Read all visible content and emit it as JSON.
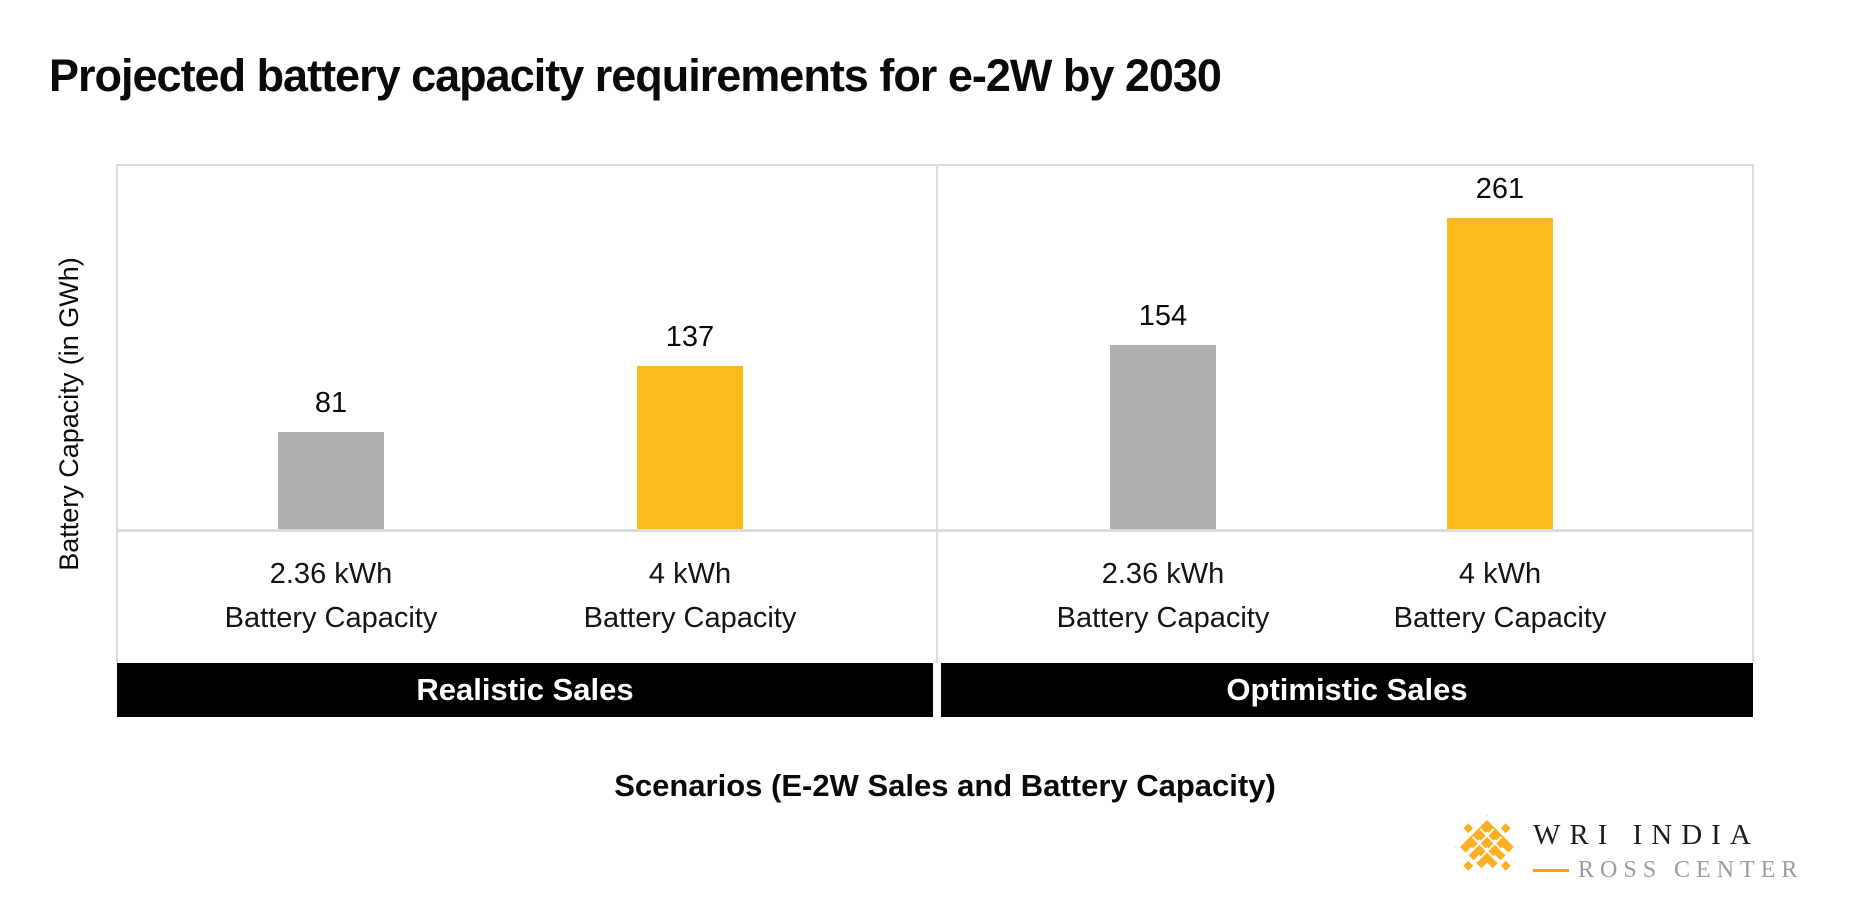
{
  "title": "Projected battery capacity requirements for e-2W by 2030",
  "chart_data": {
    "type": "bar",
    "title": "Projected battery capacity requirements for e-2W by 2030",
    "ylabel": "Battery Capacity (in GWh)",
    "xlabel": "Scenarios (E-2W Sales and Battery Capacity)",
    "ylim": [
      0,
      310
    ],
    "grid": false,
    "value_labels_shown": true,
    "groups": [
      {
        "label": "Realistic Sales",
        "bars": [
          {
            "category_line1": "2.36 kWh",
            "category_line2": "Battery Capacity",
            "value": 81,
            "color": "gray"
          },
          {
            "category_line1": "4 kWh",
            "category_line2": "Battery Capacity",
            "value": 137,
            "color": "yellow"
          }
        ]
      },
      {
        "label": "Optimistic Sales",
        "bars": [
          {
            "category_line1": "2.36 kWh",
            "category_line2": "Battery Capacity",
            "value": 154,
            "color": "gray"
          },
          {
            "category_line1": "4 kWh",
            "category_line2": "Battery Capacity",
            "value": 261,
            "color": "yellow"
          }
        ]
      }
    ],
    "colors": {
      "gray": "#b0b0b0",
      "yellow": "#fcbb1c",
      "axis_line": "#dbdbdb",
      "band_background": "#000000",
      "band_text": "#ffffff"
    }
  },
  "logo": {
    "brand": "WRI INDIA",
    "sub_brand": "ROSS CENTER",
    "mark_color": "#fbb024",
    "dash_color": "#f5a200"
  }
}
